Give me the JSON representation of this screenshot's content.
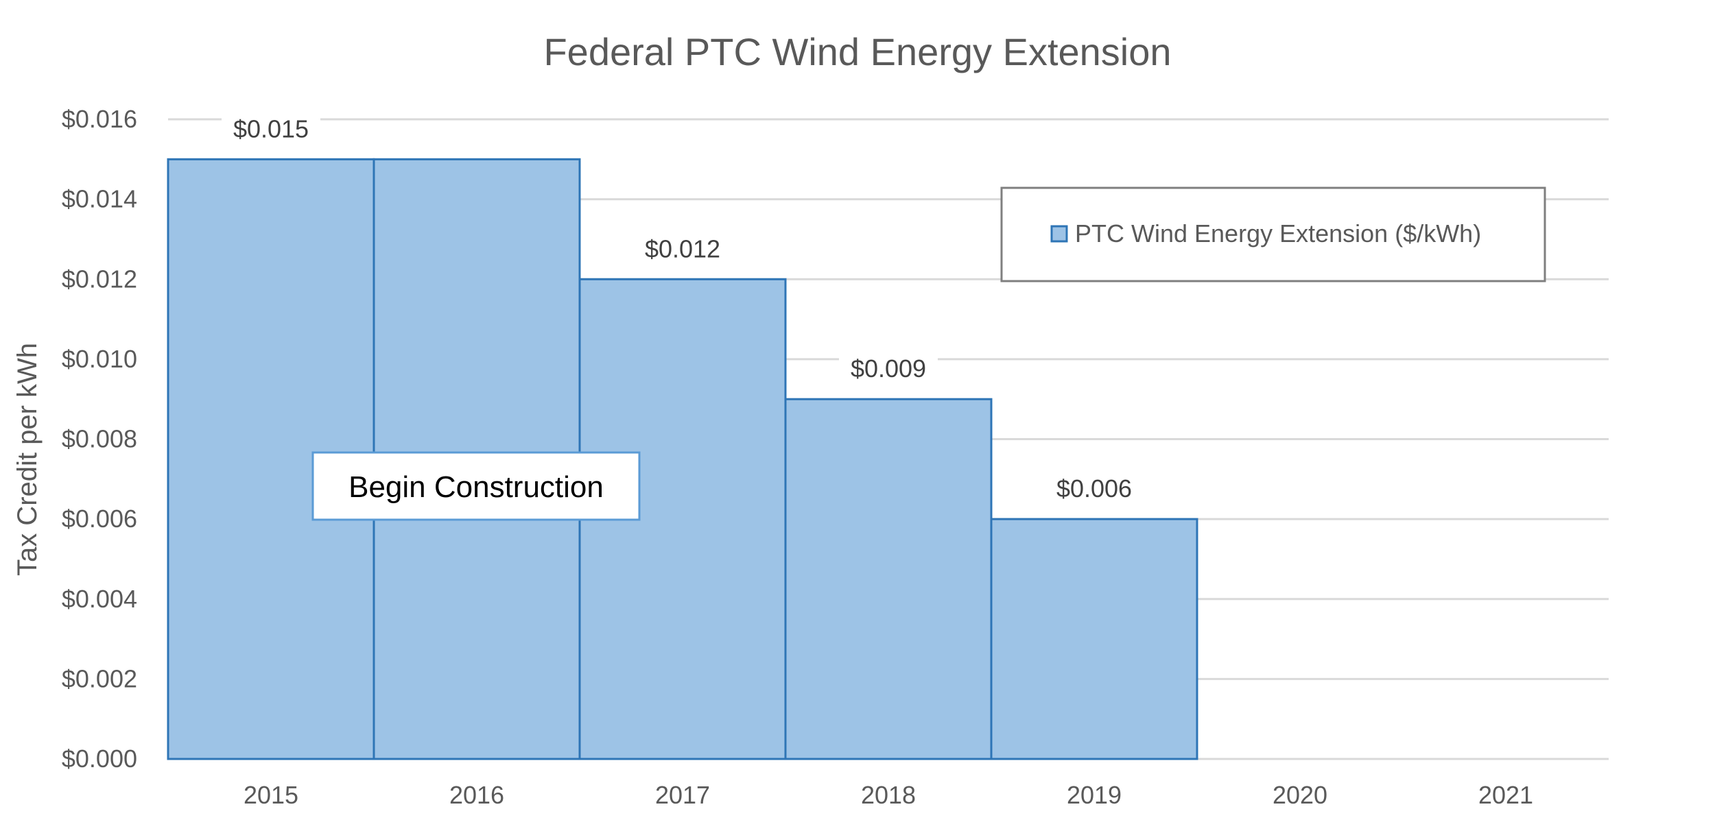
{
  "colors": {
    "bar_fill": "#9DC3E6",
    "bar_stroke": "#2E75B6",
    "grid": "#D9D9D9",
    "text": "#595959",
    "legend_border": "#7F7F7F",
    "annotation_border": "#5B9BD5"
  },
  "chart_data": {
    "type": "bar",
    "title": "Federal PTC Wind Energy Extension",
    "xlabel": "",
    "ylabel": "Tax Credit per kWh",
    "categories": [
      "2015",
      "2016",
      "2017",
      "2018",
      "2019",
      "2020",
      "2021"
    ],
    "series": [
      {
        "name": "PTC Wind Energy Extension ($/kWh)",
        "values": [
          0.015,
          0.015,
          0.012,
          0.009,
          0.006,
          0,
          0
        ]
      }
    ],
    "data_labels": [
      "$0.015",
      "",
      "$0.012",
      "$0.009",
      "$0.006",
      "",
      ""
    ],
    "yticks": [
      "$0.000",
      "$0.002",
      "$0.004",
      "$0.006",
      "$0.008",
      "$0.010",
      "$0.012",
      "$0.014",
      "$0.016"
    ],
    "ylim": [
      0,
      0.016
    ],
    "grid": true,
    "legend_position": "top-right",
    "annotation": "Begin Construction"
  }
}
